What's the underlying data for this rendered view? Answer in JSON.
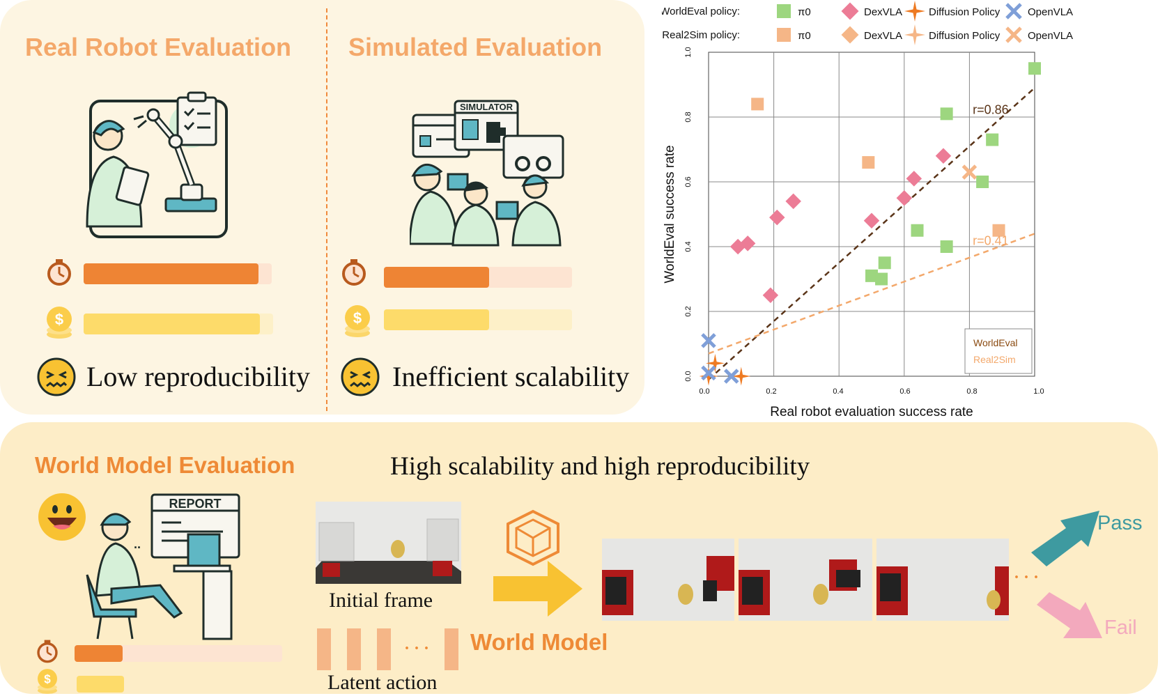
{
  "top": {
    "real_title": "Real Robot Evaluation",
    "sim_title": "Simulated Evaluation",
    "real_caption": "Low reproducibility",
    "sim_caption": "Inefficient scalability",
    "simulator_label": "SIMULATOR"
  },
  "bars": {
    "real_time_level": 0.93,
    "real_cost_level": 0.93,
    "sim_time_level": 0.56,
    "sim_cost_level": 0.56,
    "wm_time_level": 0.23,
    "wm_cost_level": 1.0
  },
  "colors": {
    "time_fill": "#ee8434",
    "time_bg": "#fde4d2",
    "cost_fill": "#fddb6a",
    "cost_bg": "#fdf0c8",
    "accent_orange": "#f4a86a",
    "pass": "#3e9aa0",
    "fail": "#f3a9bd"
  },
  "bottom": {
    "wm_title": "World Model Evaluation",
    "headline": "High scalability and high reproducibility",
    "report_label": "REPORT",
    "initial_frame": "Initial frame",
    "latent_action": "Latent action",
    "world_model": "World Model",
    "dots": "· · ·",
    "pass": "Pass",
    "fail": "Fail"
  },
  "chart_data": {
    "type": "scatter",
    "xlabel": "Real robot evaluation success rate",
    "ylabel": "WorldEval success rate",
    "xlim": [
      0.0,
      1.0
    ],
    "ylim": [
      0.0,
      1.0
    ],
    "xticks": [
      "0.0",
      "0.2",
      "0.4",
      "0.6",
      "0.8",
      "1.0"
    ],
    "yticks": [
      "0.0",
      "0.2",
      "0.4",
      "0.6",
      "0.8",
      "1.0"
    ],
    "grid": true,
    "legend_rows": [
      {
        "label": "WorldEval policy:",
        "items": [
          {
            "name": "π0",
            "marker": "square",
            "color": "#9dd67f"
          },
          {
            "name": "DexVLA",
            "marker": "diamond",
            "color": "#ec7c96"
          },
          {
            "name": "Diffusion Policy",
            "marker": "star",
            "color": "#ee7a22"
          },
          {
            "name": "OpenVLA",
            "marker": "x",
            "color": "#7f9fd8"
          }
        ]
      },
      {
        "label": "Real2Sim policy:",
        "items": [
          {
            "name": "π0",
            "marker": "square",
            "color": "#f5b687"
          },
          {
            "name": "DexVLA",
            "marker": "diamond",
            "color": "#f5b687"
          },
          {
            "name": "Diffusion Policy",
            "marker": "star",
            "color": "#f5b687"
          },
          {
            "name": "OpenVLA",
            "marker": "x",
            "color": "#f5b687"
          }
        ]
      }
    ],
    "series": [
      {
        "name": "WorldEval π0",
        "marker": "square",
        "color": "#9dd67f",
        "points": [
          [
            1.0,
            0.95
          ],
          [
            0.73,
            0.81
          ],
          [
            0.87,
            0.73
          ],
          [
            0.84,
            0.6
          ],
          [
            0.64,
            0.45
          ],
          [
            0.73,
            0.4
          ],
          [
            0.54,
            0.35
          ],
          [
            0.5,
            0.31
          ],
          [
            0.53,
            0.3
          ]
        ]
      },
      {
        "name": "WorldEval DexVLA",
        "marker": "diamond",
        "color": "#ec7c96",
        "points": [
          [
            0.72,
            0.68
          ],
          [
            0.63,
            0.61
          ],
          [
            0.6,
            0.55
          ],
          [
            0.5,
            0.48
          ],
          [
            0.26,
            0.54
          ],
          [
            0.21,
            0.49
          ],
          [
            0.12,
            0.41
          ],
          [
            0.09,
            0.4
          ],
          [
            0.19,
            0.25
          ]
        ]
      },
      {
        "name": "WorldEval Diffusion Policy",
        "marker": "star",
        "color": "#ee7a22",
        "points": [
          [
            0.02,
            0.04
          ],
          [
            0.1,
            0.0
          ],
          [
            0.0,
            0.0
          ]
        ]
      },
      {
        "name": "WorldEval OpenVLA",
        "marker": "x",
        "color": "#7f9fd8",
        "points": [
          [
            0.0,
            0.11
          ],
          [
            0.0,
            0.01
          ],
          [
            0.07,
            0.0
          ]
        ]
      },
      {
        "name": "Real2Sim π0",
        "marker": "square",
        "color": "#f5b687",
        "points": [
          [
            0.15,
            0.84
          ],
          [
            0.49,
            0.66
          ],
          [
            0.89,
            0.45
          ]
        ]
      },
      {
        "name": "Real2Sim OpenVLA",
        "marker": "x",
        "color": "#f5b687",
        "points": [
          [
            0.8,
            0.63
          ]
        ]
      }
    ],
    "fits": [
      {
        "name": "WorldEval",
        "color": "#5a3418",
        "label": "r=0.86",
        "from": [
          0.0,
          -0.01
        ],
        "to": [
          1.0,
          0.89
        ]
      },
      {
        "name": "Real2Sim",
        "color": "#f3a86b",
        "label": "r=0.41",
        "from": [
          0.0,
          0.07
        ],
        "to": [
          1.0,
          0.44
        ]
      }
    ],
    "inset_legend": [
      {
        "name": "WorldEval",
        "color": "#8a4a10"
      },
      {
        "name": "Real2Sim",
        "color": "#f3a86b"
      }
    ]
  }
}
